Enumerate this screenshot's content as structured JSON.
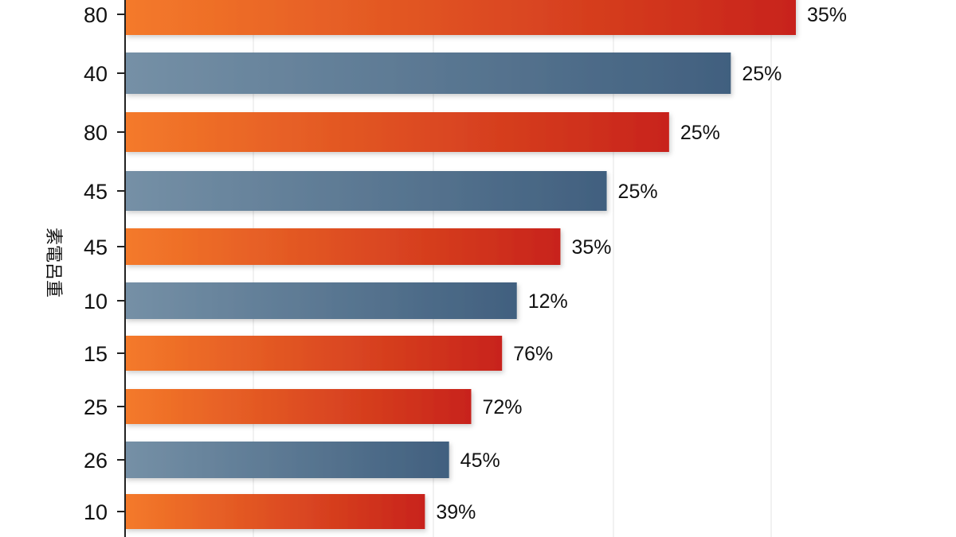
{
  "chart_data": {
    "type": "bar",
    "orientation": "horizontal",
    "ylabel": "素電呂重",
    "categories": [
      "80",
      "40",
      "80",
      "45",
      "45",
      "10",
      "15",
      "25",
      "26",
      "10"
    ],
    "values": [
      35,
      25,
      25,
      25,
      35,
      12,
      76,
      72,
      45,
      39
    ],
    "data_labels": [
      "35%",
      "25%",
      "25%",
      "25%",
      "35%",
      "12%",
      "76%",
      "72%",
      "45%",
      "39%"
    ],
    "bar_lengths_relative": [
      100,
      90.3,
      81.1,
      71.8,
      64.9,
      58.4,
      56.2,
      51.6,
      48.3,
      44.7
    ],
    "bar_colors": [
      "orange",
      "slate",
      "orange",
      "slate",
      "orange",
      "slate",
      "orange",
      "orange",
      "slate",
      "orange"
    ],
    "grid": true,
    "legend": "none"
  },
  "colors": {
    "orange_start": "#f47a2a",
    "orange_end": "#c8231a",
    "slate_start": "#7590a6",
    "slate_end": "#41607f",
    "axis": "#222222",
    "grid": "#e3e3e3"
  }
}
